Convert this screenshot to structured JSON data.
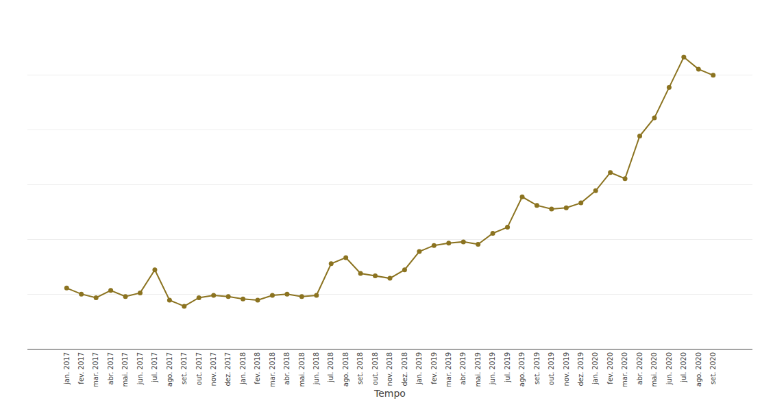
{
  "chart_data": {
    "type": "line",
    "xlabel": "Tempo",
    "categories": [
      "jan. 2017",
      "fev. 2017",
      "mar. 2017",
      "abr. 2017",
      "mai. 2017",
      "jun. 2017",
      "jul. 2017",
      "ago. 2017",
      "set. 2017",
      "out. 2017",
      "nov. 2017",
      "dez. 2017",
      "jan. 2018",
      "fev. 2018",
      "mar. 2018",
      "abr. 2018",
      "mai. 2018",
      "jun. 2018",
      "jul. 2018",
      "ago. 2018",
      "set. 2018",
      "out. 2018",
      "nov. 2018",
      "dez. 2018",
      "jan. 2019",
      "fev. 2019",
      "mar. 2019",
      "abr. 2019",
      "mai. 2019",
      "jun. 2019",
      "jul. 2019",
      "ago. 2019",
      "set. 2019",
      "out. 2019",
      "nov. 2019",
      "dez. 2019",
      "jan. 2020",
      "fev. 2020",
      "mar. 2020",
      "abr. 2020",
      "mai. 2020",
      "jun. 2020",
      "jul. 2020",
      "ago. 2020",
      "set. 2020"
    ],
    "values": [
      100,
      99.5,
      99.2,
      99.8,
      99.3,
      99.6,
      101.5,
      99.0,
      98.5,
      99.2,
      99.4,
      99.3,
      99.1,
      99.0,
      99.4,
      99.5,
      99.3,
      99.4,
      102.0,
      102.5,
      101.2,
      101.0,
      100.8,
      101.5,
      103.0,
      103.5,
      103.7,
      103.8,
      103.6,
      104.5,
      105.0,
      107.5,
      106.8,
      106.5,
      106.6,
      107.0,
      108.0,
      109.5,
      109.0,
      112.5,
      114.0,
      116.5,
      119.0,
      118.0,
      117.5
    ],
    "color": "#8B7320",
    "marker": "circle",
    "ylim": [
      95,
      122
    ],
    "yticks": [
      95,
      99.5,
      104,
      108.5,
      113,
      117.5,
      122
    ],
    "grid": true,
    "tick_labels": "x"
  }
}
